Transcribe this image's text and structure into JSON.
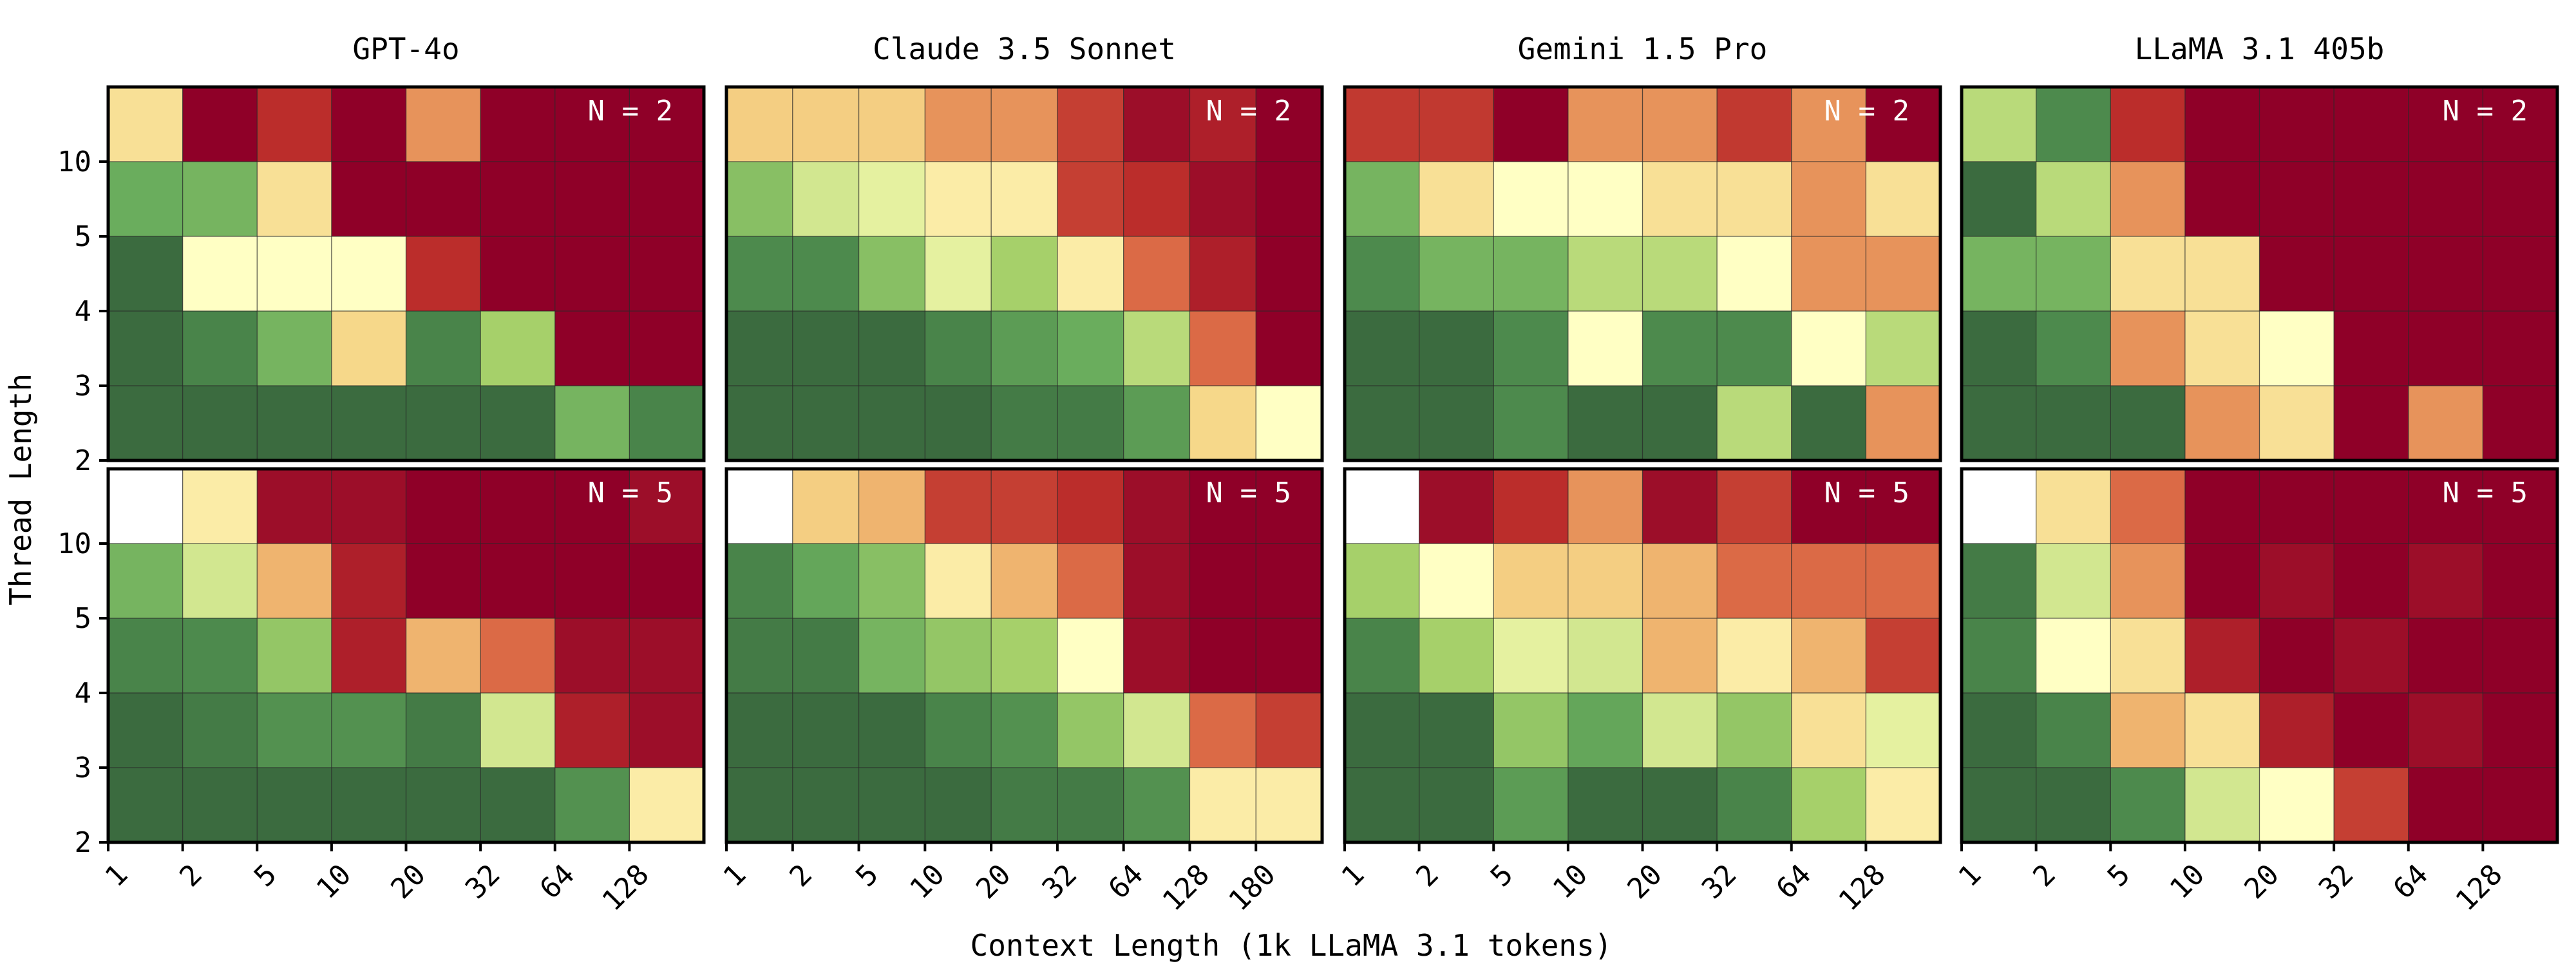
{
  "figure": {
    "xlabel": "Context Length (1k LLaMA 3.1 tokens)",
    "ylabel": "Thread Length"
  },
  "colorscale": {
    "dark_green": "#3b6b3f",
    "white": "#ffffff",
    "dark_red": "#8f0028",
    "stops": [
      "#3b6b3f",
      "#4d8a4d",
      "#6aad5d",
      "#a6d06a",
      "#e5f1a0",
      "#ffffc4",
      "#f6d88a",
      "#eca464",
      "#db6a46",
      "#bb2d2b",
      "#8f0028"
    ]
  },
  "chart_data": [
    {
      "type": "heatmap",
      "title": "GPT-4o",
      "annotation": "N = 2",
      "x_ticks": [
        "1",
        "2",
        "5",
        "10",
        "20",
        "32",
        "64",
        "128"
      ],
      "y_ticks": [
        "10",
        "5",
        "4",
        "3",
        "2"
      ],
      "values": [
        [
          0.58,
          1.0,
          0.9,
          1.0,
          0.73,
          1.0,
          1.0,
          1.0
        ],
        [
          0.2,
          0.22,
          0.58,
          1.0,
          1.0,
          1.0,
          1.0,
          1.0
        ],
        [
          0.0,
          0.5,
          0.5,
          0.5,
          0.9,
          1.0,
          1.0,
          1.0
        ],
        [
          0.0,
          0.08,
          0.22,
          0.6,
          0.08,
          0.3,
          1.0,
          1.0
        ],
        [
          0.0,
          0.0,
          0.0,
          0.0,
          0.0,
          0.0,
          0.22,
          0.08
        ]
      ]
    },
    {
      "type": "heatmap",
      "title": "Claude 3.5 Sonnet",
      "annotation": "N = 2",
      "x_ticks": [
        "1",
        "2",
        "5",
        "10",
        "20",
        "32",
        "64",
        "128",
        "180"
      ],
      "y_ticks": [
        "10",
        "5",
        "4",
        "3",
        "2"
      ],
      "values": [
        [
          0.62,
          0.62,
          0.62,
          0.73,
          0.73,
          0.87,
          0.97,
          0.93,
          1.0
        ],
        [
          0.25,
          0.37,
          0.4,
          0.55,
          0.55,
          0.87,
          0.9,
          0.97,
          1.0
        ],
        [
          0.1,
          0.1,
          0.25,
          0.4,
          0.3,
          0.55,
          0.8,
          0.93,
          1.0
        ],
        [
          0.0,
          0.0,
          0.0,
          0.08,
          0.15,
          0.2,
          0.33,
          0.8,
          1.0
        ],
        [
          0.0,
          0.0,
          0.0,
          0.0,
          0.05,
          0.05,
          0.15,
          0.6,
          0.5
        ]
      ]
    },
    {
      "type": "heatmap",
      "title": "Gemini 1.5 Pro",
      "annotation": "N = 2",
      "x_ticks": [
        "1",
        "2",
        "5",
        "10",
        "20",
        "32",
        "64",
        "128"
      ],
      "y_ticks": [
        "10",
        "5",
        "4",
        "3",
        "2"
      ],
      "values": [
        [
          0.88,
          0.88,
          1.0,
          0.73,
          0.73,
          0.88,
          0.73,
          1.0
        ],
        [
          0.22,
          0.58,
          0.5,
          0.5,
          0.58,
          0.58,
          0.73,
          0.58
        ],
        [
          0.1,
          0.22,
          0.22,
          0.33,
          0.33,
          0.5,
          0.73,
          0.73
        ],
        [
          0.0,
          0.0,
          0.1,
          0.5,
          0.1,
          0.1,
          0.5,
          0.33
        ],
        [
          0.0,
          0.0,
          0.1,
          0.0,
          0.0,
          0.33,
          0.0,
          0.73
        ]
      ]
    },
    {
      "type": "heatmap",
      "title": "LLaMA 3.1 405b",
      "annotation": "N = 2",
      "x_ticks": [
        "1",
        "2",
        "5",
        "10",
        "20",
        "32",
        "64",
        "128"
      ],
      "y_ticks": [
        "10",
        "5",
        "4",
        "3",
        "2"
      ],
      "values": [
        [
          0.33,
          0.1,
          0.9,
          1.0,
          1.0,
          1.0,
          1.0,
          1.0
        ],
        [
          0.0,
          0.33,
          0.73,
          1.0,
          1.0,
          1.0,
          1.0,
          1.0
        ],
        [
          0.22,
          0.22,
          0.58,
          0.58,
          1.0,
          1.0,
          1.0,
          1.0
        ],
        [
          0.0,
          0.1,
          0.73,
          0.58,
          0.5,
          1.0,
          1.0,
          1.0
        ],
        [
          0.0,
          0.0,
          0.0,
          0.73,
          0.58,
          1.0,
          0.73,
          1.0
        ]
      ]
    },
    {
      "type": "heatmap",
      "title": "",
      "annotation": "N = 5",
      "x_ticks": [
        "1",
        "2",
        "5",
        "10",
        "20",
        "32",
        "64",
        "128"
      ],
      "y_ticks": [
        "10",
        "5",
        "4",
        "3",
        "2"
      ],
      "values": [
        [
          null,
          0.55,
          0.97,
          0.97,
          1.0,
          1.0,
          1.0,
          0.97
        ],
        [
          0.22,
          0.37,
          0.67,
          0.93,
          1.0,
          1.0,
          1.0,
          1.0
        ],
        [
          0.08,
          0.1,
          0.27,
          0.93,
          0.67,
          0.8,
          0.97,
          0.97
        ],
        [
          0.0,
          0.05,
          0.12,
          0.12,
          0.05,
          0.37,
          0.93,
          0.97
        ],
        [
          0.0,
          0.0,
          0.0,
          0.0,
          0.0,
          0.0,
          0.12,
          0.55
        ]
      ]
    },
    {
      "type": "heatmap",
      "title": "",
      "annotation": "N = 5",
      "x_ticks": [
        "1",
        "2",
        "5",
        "10",
        "20",
        "32",
        "64",
        "128",
        "180"
      ],
      "y_ticks": [
        "10",
        "5",
        "4",
        "3",
        "2"
      ],
      "values": [
        [
          null,
          0.62,
          0.67,
          0.87,
          0.87,
          0.9,
          0.97,
          1.0,
          1.0
        ],
        [
          0.08,
          0.18,
          0.25,
          0.55,
          0.67,
          0.8,
          0.97,
          1.0,
          1.0
        ],
        [
          0.05,
          0.05,
          0.22,
          0.27,
          0.3,
          0.5,
          0.97,
          1.0,
          1.0
        ],
        [
          0.0,
          0.0,
          0.0,
          0.08,
          0.12,
          0.27,
          0.37,
          0.8,
          0.87
        ],
        [
          0.0,
          0.0,
          0.0,
          0.0,
          0.05,
          0.05,
          0.12,
          0.55,
          0.55
        ]
      ]
    },
    {
      "type": "heatmap",
      "title": "",
      "annotation": "N = 5",
      "x_ticks": [
        "1",
        "2",
        "5",
        "10",
        "20",
        "32",
        "64",
        "128"
      ],
      "y_ticks": [
        "10",
        "5",
        "4",
        "3",
        "2"
      ],
      "values": [
        [
          null,
          0.97,
          0.9,
          0.73,
          0.97,
          0.87,
          1.0,
          1.0
        ],
        [
          0.3,
          0.5,
          0.62,
          0.62,
          0.67,
          0.8,
          0.8,
          0.8
        ],
        [
          0.08,
          0.3,
          0.4,
          0.37,
          0.67,
          0.55,
          0.67,
          0.87
        ],
        [
          0.0,
          0.0,
          0.27,
          0.18,
          0.37,
          0.27,
          0.58,
          0.4
        ],
        [
          0.0,
          0.0,
          0.15,
          0.0,
          0.0,
          0.08,
          0.3,
          0.55
        ]
      ]
    },
    {
      "type": "heatmap",
      "title": "",
      "annotation": "N = 5",
      "x_ticks": [
        "1",
        "2",
        "5",
        "10",
        "20",
        "32",
        "64",
        "128"
      ],
      "y_ticks": [
        "10",
        "5",
        "4",
        "3",
        "2"
      ],
      "values": [
        [
          null,
          0.58,
          0.8,
          1.0,
          1.0,
          1.0,
          1.0,
          1.0
        ],
        [
          0.05,
          0.37,
          0.73,
          1.0,
          0.97,
          1.0,
          0.97,
          1.0
        ],
        [
          0.08,
          0.5,
          0.58,
          0.93,
          1.0,
          0.97,
          1.0,
          1.0
        ],
        [
          0.0,
          0.08,
          0.67,
          0.58,
          0.93,
          1.0,
          0.97,
          1.0
        ],
        [
          0.0,
          0.0,
          0.1,
          0.37,
          0.5,
          0.87,
          1.0,
          1.0
        ]
      ]
    }
  ]
}
